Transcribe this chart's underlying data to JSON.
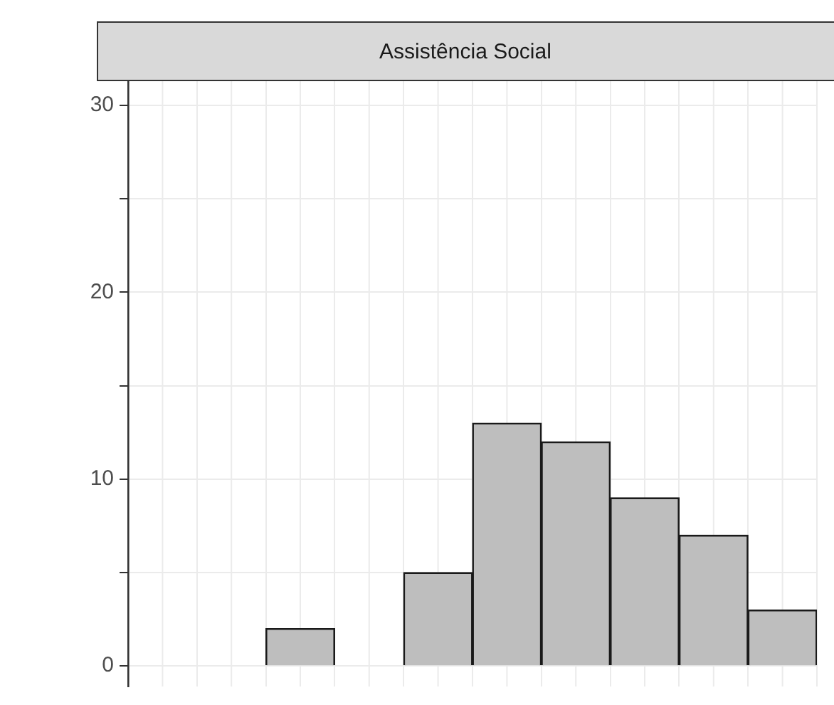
{
  "chart_data": {
    "type": "bar",
    "title": "Assistência Social",
    "categories": [
      null,
      null,
      null,
      null,
      null,
      null,
      null,
      null,
      null,
      null
    ],
    "values": [
      0,
      0,
      2,
      0,
      5,
      13,
      12,
      9,
      7,
      3
    ],
    "color": "#bebebe",
    "ylim": [
      -1.1,
      31.3
    ],
    "yticks": [
      0,
      {
        "value": 5,
        "label": null
      },
      10,
      {
        "value": 15,
        "label": null
      },
      20,
      {
        "value": 25,
        "label": null
      },
      30
    ],
    "tick_labels": "y",
    "grid": true
  }
}
